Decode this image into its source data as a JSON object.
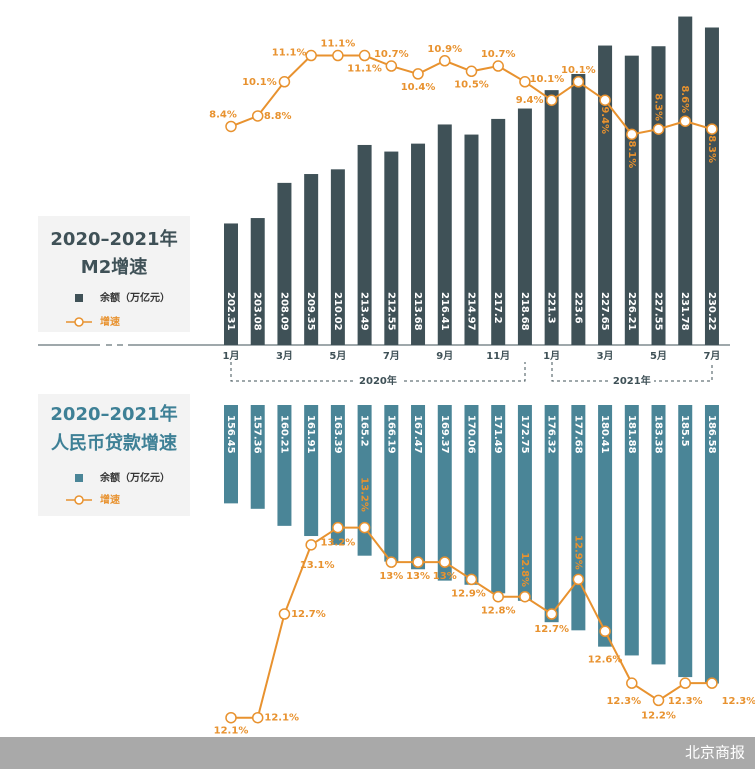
{
  "chart_data": [
    {
      "type": "bar_line",
      "title": [
        "2020–2021年",
        "M2增速"
      ],
      "categories": [
        "1月",
        null,
        "3月",
        null,
        "5月",
        null,
        "7月",
        null,
        "9月",
        null,
        "11月",
        null,
        "1月",
        null,
        "3月",
        null,
        "5月",
        null,
        "7月"
      ],
      "year_labels": [
        "2020年",
        "2021年"
      ],
      "ylim": [
        185,
        232
      ],
      "y2lim": [
        8,
        11.5
      ],
      "series": [
        {
          "name": "余额（万亿元）",
          "type": "bar",
          "color": "#3f5157",
          "values": [
            202.31,
            203.08,
            208.09,
            209.35,
            210.02,
            213.49,
            212.55,
            213.68,
            216.41,
            214.97,
            217.2,
            218.68,
            221.3,
            223.6,
            227.65,
            226.21,
            227.55,
            231.78,
            230.22
          ]
        },
        {
          "name": "增速",
          "type": "line",
          "axis": "y2",
          "color": "#e8922f",
          "values": [
            8.4,
            8.8,
            10.1,
            11.1,
            11.1,
            11.1,
            10.7,
            10.4,
            10.9,
            10.5,
            10.7,
            10.1,
            9.4,
            10.1,
            9.4,
            8.1,
            8.3,
            8.6,
            8.3
          ],
          "value_labels": [
            "8.4%",
            "8.8%",
            "10.1%",
            "11.1%",
            "11.1%",
            "11.1%",
            "10.7%",
            "10.4%",
            "10.9%",
            "10.5%",
            "10.7%",
            "10.1%",
            "9.4%",
            "10.1%",
            "9.4%",
            "8.1%",
            "8.3%",
            "8.6%",
            "8.3%"
          ]
        }
      ]
    },
    {
      "type": "bar_line",
      "title": [
        "2020–2021年",
        "人民币贷款增速"
      ],
      "ylim": [
        140,
        190
      ],
      "y2lim": [
        12,
        13.4
      ],
      "series": [
        {
          "name": "余额（万亿元）",
          "type": "bar",
          "color": "#4a8597",
          "values": [
            156.45,
            157.36,
            160.21,
            161.91,
            163.39,
            165.2,
            166.19,
            167.47,
            169.37,
            170.06,
            171.49,
            172.75,
            176.32,
            177.68,
            180.41,
            181.88,
            183.38,
            185.5,
            186.58
          ]
        },
        {
          "name": "增速",
          "type": "line",
          "axis": "y2",
          "color": "#e8922f",
          "values": [
            12.1,
            12.1,
            12.7,
            13.1,
            13.2,
            13.2,
            13,
            13,
            13,
            12.9,
            12.8,
            12.8,
            12.7,
            12.9,
            12.6,
            12.3,
            12.2,
            12.3,
            12.3
          ],
          "value_labels": [
            "12.1%",
            "12.1%",
            "12.7%",
            "13.1%",
            "13.2%",
            "13.2%",
            "13%",
            "13%",
            "13%",
            "12.9%",
            "12.8%",
            "12.8%",
            "12.7%",
            "12.9%",
            "12.6%",
            "12.3%",
            "12.2%",
            "12.3%",
            "12.3%"
          ]
        }
      ]
    }
  ],
  "source": "北京商报"
}
